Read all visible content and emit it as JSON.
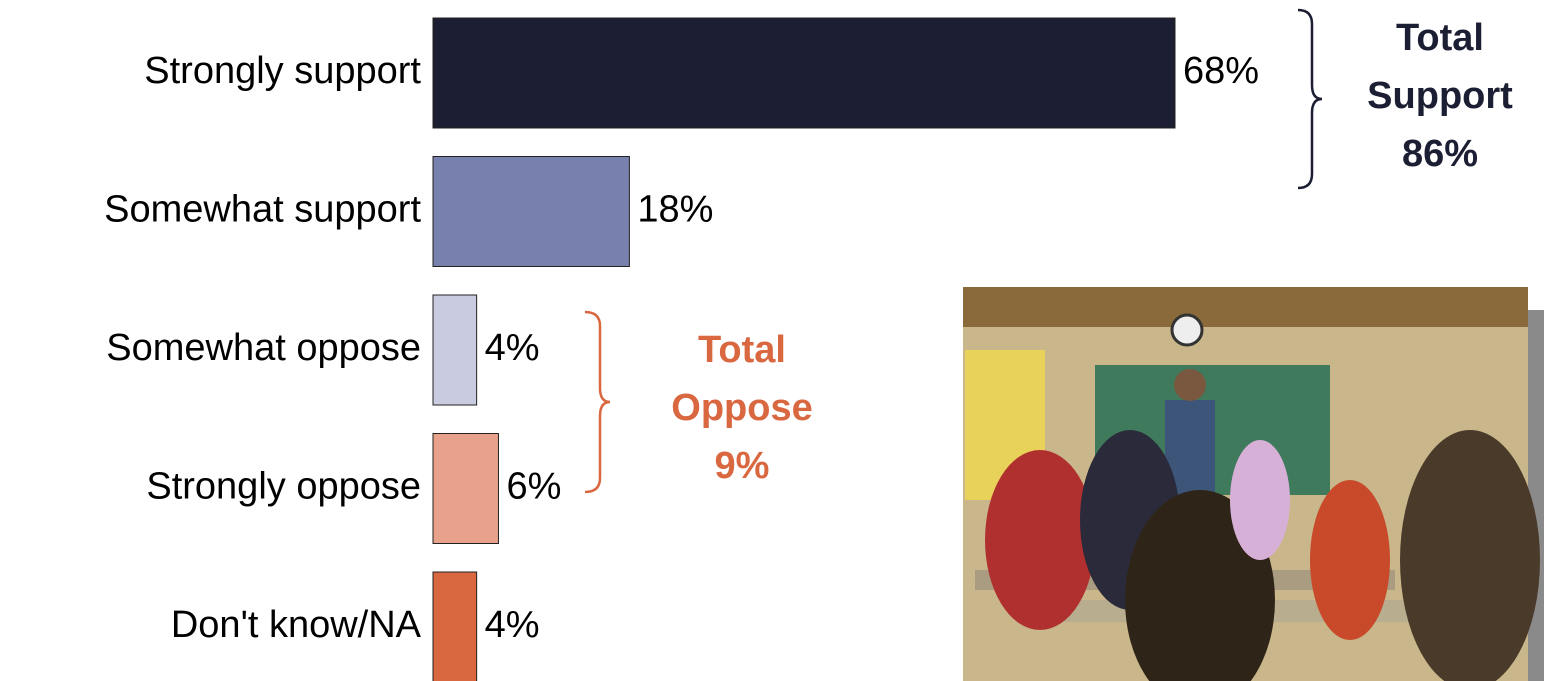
{
  "chart_data": {
    "type": "bar",
    "orientation": "horizontal",
    "categories": [
      "Strongly support",
      "Somewhat support",
      "Somewhat oppose",
      "Strongly oppose",
      "Don't know/NA"
    ],
    "values": [
      68,
      18,
      4,
      6,
      4
    ],
    "value_labels": [
      "68%",
      "18%",
      "4%",
      "6%",
      "4%"
    ],
    "colors": [
      "#1c1f33",
      "#7880ae",
      "#c9cce0",
      "#e8a28b",
      "#d9673f"
    ],
    "annotations": [
      {
        "lines": [
          "Total",
          "Support",
          "86%"
        ],
        "color": "#1c1f33"
      },
      {
        "lines": [
          "Total",
          "Oppose",
          "9%"
        ],
        "color": "#d9673f"
      }
    ]
  }
}
